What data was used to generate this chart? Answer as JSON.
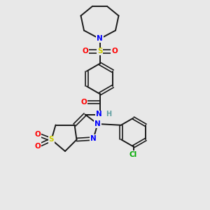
{
  "bg_color": "#e8e8e8",
  "bond_color": "#1a1a1a",
  "atom_colors": {
    "N": "#0000ff",
    "O": "#ff0000",
    "S": "#cccc00",
    "Cl": "#00aa00",
    "H": "#5f9ea0",
    "C": "#1a1a1a"
  },
  "bond_width": 1.4,
  "figsize": [
    3.0,
    3.0
  ],
  "dpi": 100,
  "xlim": [
    0,
    10
  ],
  "ylim": [
    0,
    10
  ]
}
